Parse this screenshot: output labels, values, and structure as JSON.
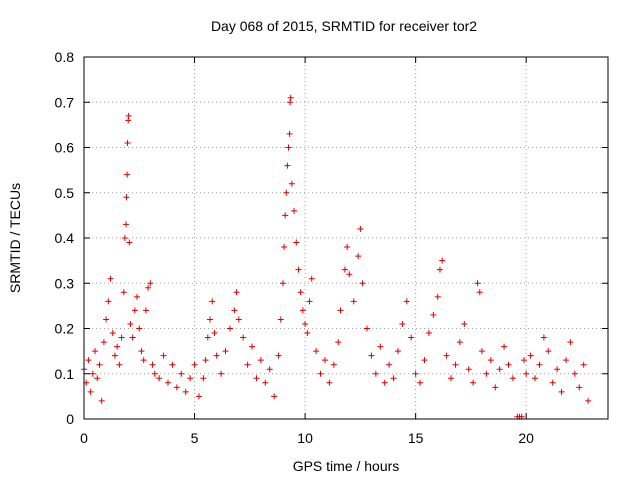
{
  "chart_data": {
    "type": "scatter",
    "title": "Day 068 of 2015, SRMTID for receiver tor2",
    "xlabel": "GPS time / hours",
    "ylabel": "SRMTID / TECUs",
    "xlim": [
      0,
      23.7
    ],
    "ylim": [
      0,
      0.8
    ],
    "x_ticks": [
      "0",
      "5",
      "10",
      "15",
      "20"
    ],
    "x_tick_values": [
      0,
      5,
      10,
      15,
      20
    ],
    "y_ticks": [
      "0",
      "0.1",
      "0.2",
      "0.3",
      "0.4",
      "0.5",
      "0.6",
      "0.7",
      "0.8"
    ],
    "y_tick_values": [
      0,
      0.1,
      0.2,
      0.3,
      0.4,
      0.5,
      0.6,
      0.7,
      0.8
    ],
    "grid": true,
    "marker": "+",
    "marker_color": "#e00000",
    "series": [
      {
        "name": "SRMTID",
        "points": [
          [
            0.0,
            0.11
          ],
          [
            0.1,
            0.08
          ],
          [
            0.2,
            0.13
          ],
          [
            0.3,
            0.06
          ],
          [
            0.4,
            0.1
          ],
          [
            0.5,
            0.15
          ],
          [
            0.6,
            0.09
          ],
          [
            0.7,
            0.12
          ],
          [
            0.8,
            0.04
          ],
          [
            0.9,
            0.17
          ],
          [
            1.0,
            0.22
          ],
          [
            1.1,
            0.26
          ],
          [
            1.2,
            0.31
          ],
          [
            1.3,
            0.19
          ],
          [
            1.4,
            0.14
          ],
          [
            1.5,
            0.16
          ],
          [
            1.6,
            0.12
          ],
          [
            1.7,
            0.18
          ],
          [
            1.8,
            0.28
          ],
          [
            1.85,
            0.4
          ],
          [
            1.9,
            0.43
          ],
          [
            1.92,
            0.49
          ],
          [
            1.95,
            0.54
          ],
          [
            1.97,
            0.61
          ],
          [
            2.0,
            0.66
          ],
          [
            2.02,
            0.67
          ],
          [
            2.05,
            0.39
          ],
          [
            2.1,
            0.21
          ],
          [
            2.2,
            0.18
          ],
          [
            2.3,
            0.24
          ],
          [
            2.4,
            0.27
          ],
          [
            2.5,
            0.2
          ],
          [
            2.6,
            0.15
          ],
          [
            2.7,
            0.13
          ],
          [
            2.8,
            0.24
          ],
          [
            2.9,
            0.29
          ],
          [
            3.0,
            0.3
          ],
          [
            3.1,
            0.12
          ],
          [
            3.2,
            0.1
          ],
          [
            3.4,
            0.09
          ],
          [
            3.6,
            0.14
          ],
          [
            3.8,
            0.08
          ],
          [
            4.0,
            0.12
          ],
          [
            4.2,
            0.07
          ],
          [
            4.4,
            0.1
          ],
          [
            4.6,
            0.06
          ],
          [
            4.8,
            0.09
          ],
          [
            5.0,
            0.12
          ],
          [
            5.2,
            0.05
          ],
          [
            5.4,
            0.09
          ],
          [
            5.5,
            0.13
          ],
          [
            5.6,
            0.18
          ],
          [
            5.7,
            0.22
          ],
          [
            5.8,
            0.26
          ],
          [
            5.9,
            0.19
          ],
          [
            6.0,
            0.14
          ],
          [
            6.2,
            0.1
          ],
          [
            6.4,
            0.15
          ],
          [
            6.6,
            0.2
          ],
          [
            6.8,
            0.24
          ],
          [
            6.9,
            0.28
          ],
          [
            7.0,
            0.22
          ],
          [
            7.2,
            0.18
          ],
          [
            7.4,
            0.12
          ],
          [
            7.6,
            0.16
          ],
          [
            7.8,
            0.09
          ],
          [
            8.0,
            0.13
          ],
          [
            8.2,
            0.08
          ],
          [
            8.4,
            0.11
          ],
          [
            8.6,
            0.05
          ],
          [
            8.8,
            0.14
          ],
          [
            8.9,
            0.22
          ],
          [
            9.0,
            0.3
          ],
          [
            9.05,
            0.38
          ],
          [
            9.1,
            0.45
          ],
          [
            9.15,
            0.5
          ],
          [
            9.2,
            0.56
          ],
          [
            9.25,
            0.6
          ],
          [
            9.3,
            0.63
          ],
          [
            9.32,
            0.7
          ],
          [
            9.35,
            0.71
          ],
          [
            9.4,
            0.52
          ],
          [
            9.5,
            0.46
          ],
          [
            9.6,
            0.39
          ],
          [
            9.7,
            0.33
          ],
          [
            9.8,
            0.28
          ],
          [
            9.9,
            0.24
          ],
          [
            10.0,
            0.21
          ],
          [
            10.1,
            0.19
          ],
          [
            10.2,
            0.26
          ],
          [
            10.3,
            0.31
          ],
          [
            10.5,
            0.15
          ],
          [
            10.7,
            0.1
          ],
          [
            10.9,
            0.13
          ],
          [
            11.1,
            0.08
          ],
          [
            11.3,
            0.12
          ],
          [
            11.5,
            0.17
          ],
          [
            11.6,
            0.24
          ],
          [
            11.8,
            0.33
          ],
          [
            11.9,
            0.38
          ],
          [
            12.0,
            0.32
          ],
          [
            12.2,
            0.26
          ],
          [
            12.4,
            0.36
          ],
          [
            12.5,
            0.42
          ],
          [
            12.6,
            0.3
          ],
          [
            12.8,
            0.2
          ],
          [
            13.0,
            0.14
          ],
          [
            13.2,
            0.1
          ],
          [
            13.4,
            0.16
          ],
          [
            13.6,
            0.08
          ],
          [
            13.8,
            0.12
          ],
          [
            14.0,
            0.09
          ],
          [
            14.2,
            0.15
          ],
          [
            14.4,
            0.21
          ],
          [
            14.6,
            0.26
          ],
          [
            14.8,
            0.18
          ],
          [
            15.0,
            0.1
          ],
          [
            15.2,
            0.08
          ],
          [
            15.4,
            0.13
          ],
          [
            15.6,
            0.19
          ],
          [
            15.8,
            0.23
          ],
          [
            16.0,
            0.27
          ],
          [
            16.1,
            0.33
          ],
          [
            16.2,
            0.35
          ],
          [
            16.4,
            0.14
          ],
          [
            16.6,
            0.09
          ],
          [
            16.8,
            0.12
          ],
          [
            17.0,
            0.17
          ],
          [
            17.2,
            0.21
          ],
          [
            17.4,
            0.11
          ],
          [
            17.6,
            0.08
          ],
          [
            17.8,
            0.3
          ],
          [
            17.9,
            0.28
          ],
          [
            18.0,
            0.15
          ],
          [
            18.2,
            0.1
          ],
          [
            18.4,
            0.13
          ],
          [
            18.6,
            0.07
          ],
          [
            18.8,
            0.11
          ],
          [
            19.0,
            0.16
          ],
          [
            19.2,
            0.12
          ],
          [
            19.4,
            0.09
          ],
          [
            19.6,
            0.005
          ],
          [
            19.7,
            0.005
          ],
          [
            19.8,
            0.005
          ],
          [
            19.9,
            0.13
          ],
          [
            20.0,
            0.1
          ],
          [
            20.2,
            0.14
          ],
          [
            20.4,
            0.09
          ],
          [
            20.6,
            0.12
          ],
          [
            20.8,
            0.18
          ],
          [
            21.0,
            0.15
          ],
          [
            21.2,
            0.08
          ],
          [
            21.4,
            0.11
          ],
          [
            21.6,
            0.06
          ],
          [
            21.8,
            0.13
          ],
          [
            22.0,
            0.17
          ],
          [
            22.2,
            0.1
          ],
          [
            22.4,
            0.07
          ],
          [
            22.6,
            0.12
          ],
          [
            22.8,
            0.04
          ]
        ]
      }
    ]
  }
}
